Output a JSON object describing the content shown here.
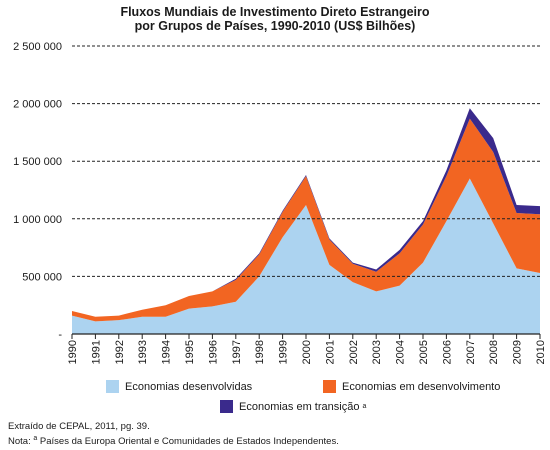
{
  "chart_data": {
    "type": "area",
    "stacked": true,
    "title_line1": "Fluxos Mundiais de Investimento Direto Estrangeiro",
    "title_line2": "por Grupos de Países, 1990-2010 (US$ Bilhões)",
    "x": [
      "1990",
      "1991",
      "1992",
      "1993",
      "1994",
      "1995",
      "1996",
      "1997",
      "1998",
      "1999",
      "2000",
      "2001",
      "2002",
      "2003",
      "2004",
      "2005",
      "2006",
      "2007",
      "2008",
      "2009",
      "2010"
    ],
    "yticks": [
      "2 500 000",
      "2 000 000",
      "1 500 000",
      "1 000 000",
      "500 000",
      "-"
    ],
    "ytick_values": [
      2500000,
      2000000,
      1500000,
      1000000,
      500000,
      0
    ],
    "ylim": [
      0,
      2500000
    ],
    "grid": "horizontal dashed",
    "series": [
      {
        "name": "Economias desenvolvidas",
        "color": "#acd3f0",
        "values": [
          160000,
          110000,
          120000,
          150000,
          150000,
          220000,
          240000,
          280000,
          500000,
          840000,
          1120000,
          600000,
          450000,
          370000,
          420000,
          620000,
          980000,
          1350000,
          960000,
          570000,
          530000
        ]
      },
      {
        "name": "Economias em desenvolvimento",
        "color": "#f26522",
        "values": [
          40000,
          40000,
          40000,
          60000,
          100000,
          110000,
          130000,
          190000,
          190000,
          220000,
          250000,
          220000,
          160000,
          170000,
          280000,
          330000,
          390000,
          520000,
          620000,
          480000,
          510000
        ]
      },
      {
        "name": "Economias em transição",
        "color": "#3a2a8c",
        "values": [
          0,
          0,
          0,
          0,
          0,
          0,
          0,
          10000,
          10000,
          10000,
          10000,
          10000,
          10000,
          20000,
          30000,
          30000,
          50000,
          90000,
          120000,
          70000,
          70000
        ]
      }
    ]
  },
  "legend": {
    "developed": "Economias desenvolvidas",
    "developing": "Economias em desenvolvimento",
    "transition": "Economias em transição",
    "transition_sup": "a"
  },
  "notes": {
    "source": "Extraído de CEPAL, 2011, pg. 39.",
    "note_prefix": "Nota:",
    "note_sup": "a",
    "note_text": "Países da Europa Oriental e Comunidades de Estados Independentes."
  }
}
